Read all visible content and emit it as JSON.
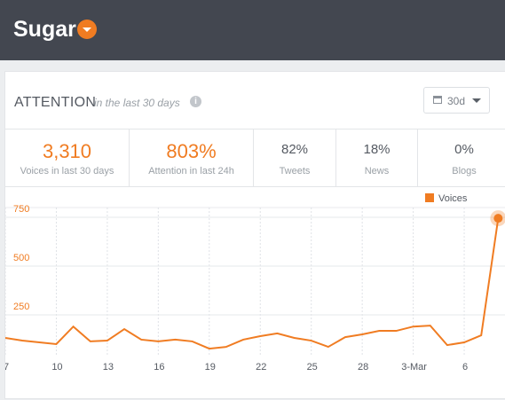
{
  "header": {
    "title": "Sugar"
  },
  "panel": {
    "title": "ATTENTION",
    "subtitle": "in the last 30 days",
    "range_button": "30d"
  },
  "stats": [
    {
      "value": "3,310",
      "label": "Voices in last 30 days"
    },
    {
      "value": "803%",
      "label": "Attention in last 24h"
    },
    {
      "value": "82%",
      "label": "Tweets"
    },
    {
      "value": "18%",
      "label": "News"
    },
    {
      "value": "0%",
      "label": "Blogs"
    }
  ],
  "chart_data": {
    "type": "line",
    "categories": [
      "7",
      null,
      null,
      "10",
      null,
      null,
      "13",
      null,
      null,
      "16",
      null,
      null,
      "19",
      null,
      null,
      "22",
      null,
      null,
      "25",
      null,
      null,
      "28",
      null,
      null,
      "3-Mar",
      null,
      null,
      "6",
      null,
      null
    ],
    "series": [
      {
        "name": "Voices",
        "color": "#f07c22",
        "values": [
          132,
          118,
          109,
          100,
          190,
          114,
          118,
          177,
          123,
          114,
          123,
          114,
          77,
          86,
          123,
          141,
          155,
          132,
          118,
          86,
          136,
          150,
          168,
          168,
          190,
          195,
          95,
          109,
          145,
          745
        ]
      }
    ],
    "ylim": [
      0,
      800
    ],
    "yticks": [
      250,
      500,
      750
    ],
    "grid": true,
    "legend": "top-right"
  }
}
